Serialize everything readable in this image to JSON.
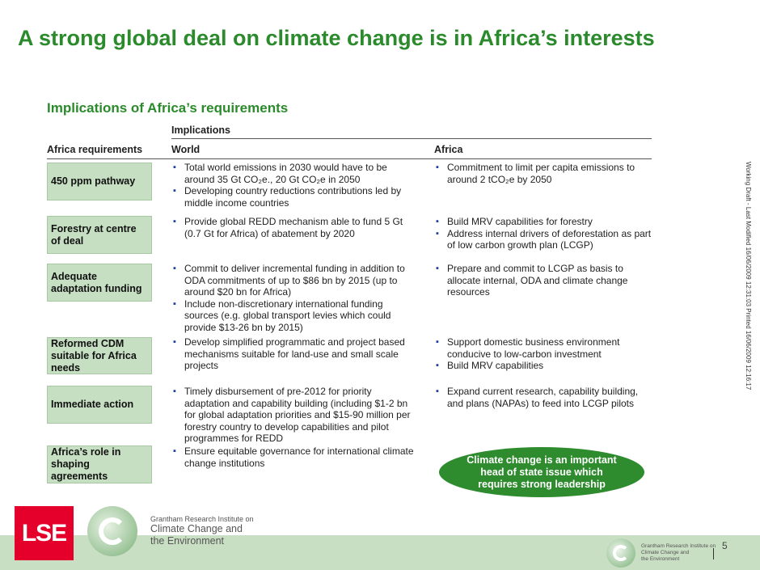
{
  "title": "A strong global deal on climate change is in Africa’s interests",
  "subtitle": "Implications of Africa’s requirements",
  "headers": {
    "implications": "Implications",
    "africa_requirements": "Africa requirements",
    "world": "World",
    "africa": "Africa"
  },
  "rows": [
    {
      "requirement": "450 ppm pathway",
      "world": [
        "Total world emissions in 2030 would have to be around 35 Gt CO₂e., 20 Gt CO₂e in 2050",
        "Developing country reductions contributions led by middle income countries"
      ],
      "africa": [
        "Commitment to limit per capita emissions to around 2 tCO₂e by 2050"
      ]
    },
    {
      "requirement": "Forestry at centre of deal",
      "world": [
        "Provide global REDD mechanism able to fund 5 Gt (0.7 Gt for Africa) of abatement by 2020"
      ],
      "africa": [
        "Build MRV capabilities for forestry",
        "Address internal drivers of deforestation as part of low carbon growth plan (LCGP)"
      ]
    },
    {
      "requirement": "Adequate adaptation funding",
      "world": [
        "Commit to deliver incremental funding in addition to ODA commitments of up to $86 bn by 2015 (up to around $20 bn for Africa)",
        "Include non-discretionary international funding sources (e.g. global transport levies which could provide $13-26 bn by 2015)"
      ],
      "africa": [
        "Prepare and commit to LCGP as basis to allocate internal, ODA and climate change resources"
      ]
    },
    {
      "requirement": "Reformed CDM suitable for Africa needs",
      "world": [
        "Develop simplified programmatic and project based mechanisms suitable for land-use and small scale projects"
      ],
      "africa": [
        "Support domestic business environment conducive to low-carbon investment",
        "Build MRV capabilities"
      ]
    },
    {
      "requirement": "Immediate action",
      "world": [
        "Timely disbursement of pre-2012 for priority adaptation and capability building (including $1-2 bn for global adaptation priorities and $15-90 million per forestry country to develop capabilities and pilot programmes for REDD"
      ],
      "africa": [
        "Expand current research, capability building, and plans (NAPAs) to feed into LCGP pilots"
      ]
    },
    {
      "requirement": "Africa’s role in shaping agreements",
      "world": [
        "Ensure equitable governance for international climate change institutions"
      ],
      "africa": []
    }
  ],
  "callout": "Climate change is an important head of state issue which requires strong leadership",
  "side_note": "Working Draft - Last Modified 16/06/2009 12:31:03     Printed 16/06/2009 12:16:17",
  "footer": {
    "lse_logo": "LSE",
    "org_line1": "Grantham Research Institute on",
    "org_line2": "Climate Change and",
    "org_line3": "the Environment",
    "small_org_line1": "Grantham Research Institute on",
    "small_org_line2": "Climate Change and",
    "small_org_line3": "the Environment",
    "page_number": "5"
  },
  "colors": {
    "title_green": "#2b8a2b",
    "row_box_fill": "#c6dfc2",
    "callout_fill": "#2e8b2e",
    "footer_band": "#c8dfc3",
    "lse_red": "#e4002b",
    "bullet_blue": "#1f3f99"
  }
}
